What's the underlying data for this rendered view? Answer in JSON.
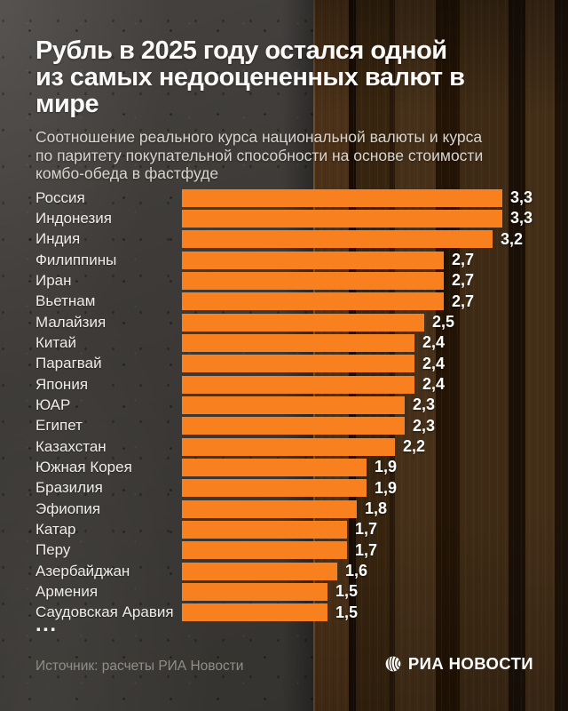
{
  "header": {
    "title_line1": "Рубль в 2025 году остался одной",
    "title_line2": "из самых недооцененных валют в мире",
    "subtitle_lines": [
      "Соотношение реального курса национальной валюты и курса",
      "по паритету покупательной способности на основе стоимости",
      "комбо-обеда в фастфуде"
    ]
  },
  "chart_data": {
    "type": "bar",
    "orientation": "horizontal",
    "title": "Рубль в 2025 году остался одной из самых недооцененных валют в мире",
    "subtitle": "Соотношение реального курса национальной валюты и курса по паритету покупательной способности на основе стоимости комбо-обеда в фастфуде",
    "categories": [
      "Россия",
      "Индонезия",
      "Индия",
      "Филиппины",
      "Иран",
      "Вьетнам",
      "Малайзия",
      "Китай",
      "Парагвай",
      "Япония",
      "ЮАР",
      "Египет",
      "Казахстан",
      "Южная Корея",
      "Бразилия",
      "Эфиопия",
      "Катар",
      "Перу",
      "Азербайджан",
      "Армения",
      "Саудовская Аравия"
    ],
    "values": [
      3.3,
      3.3,
      3.2,
      2.7,
      2.7,
      2.7,
      2.5,
      2.4,
      2.4,
      2.4,
      2.3,
      2.3,
      2.2,
      1.9,
      1.9,
      1.8,
      1.7,
      1.7,
      1.6,
      1.5,
      1.5
    ],
    "value_labels": [
      "3,3",
      "3,3",
      "3,2",
      "2,7",
      "2,7",
      "2,7",
      "2,5",
      "2,4",
      "2,4",
      "2,4",
      "2,3",
      "2,3",
      "2,2",
      "1,9",
      "1,9",
      "1,8",
      "1,7",
      "1,7",
      "1,6",
      "1,5",
      "1,5"
    ],
    "xlim": [
      0,
      3.3
    ],
    "grid": false,
    "legend": false,
    "bar_color": "#F8801E",
    "list_truncated_marker": "..."
  },
  "footer": {
    "source": "Источник: расчеты РИА Новости",
    "logo_text": "РИА НОВОСТИ"
  }
}
